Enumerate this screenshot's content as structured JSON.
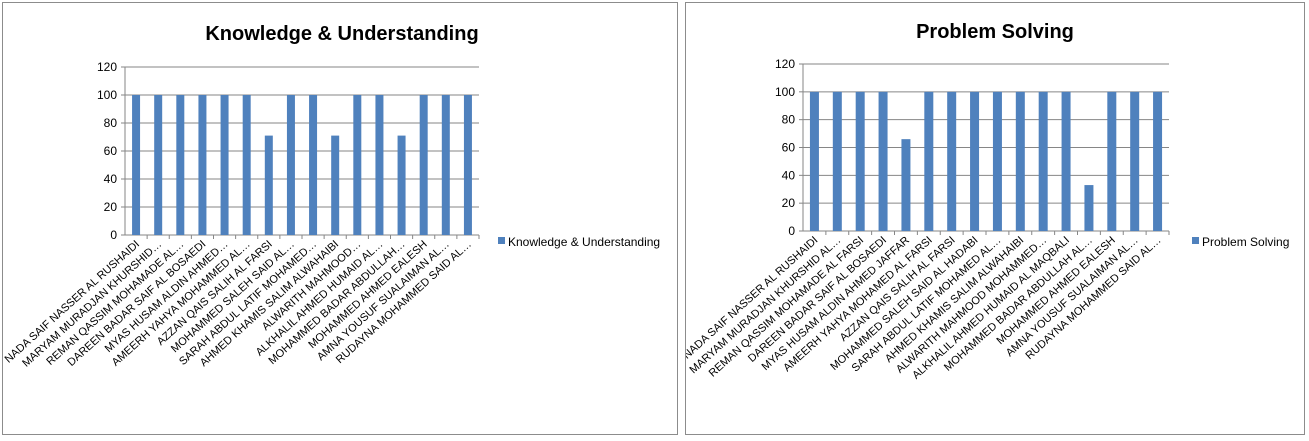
{
  "colors": {
    "bar": "#4f81bd",
    "grid": "#868686",
    "axis": "#868686"
  },
  "chart_data": [
    {
      "type": "bar",
      "title": "Knowledge & Understanding",
      "legend": "right",
      "grid": true,
      "ylim": [
        0,
        120
      ],
      "yticks": [
        "0",
        "20",
        "40",
        "60",
        "80",
        "100",
        "120"
      ],
      "categories": [
        "NADA SAIF NASSER AL RUSHAIDI",
        "MARYAM MURADJAN KHURSHID…",
        "REMAN QASSIM MOHAMADE AL…",
        "DAREEN BADAR SAIF AL BOSAEDI",
        "MYAS HUSAM ALDIN AHMED…",
        "AMEERH YAHYA MOHAMMED  AL…",
        "AZZAN QAIS SALIH AL FARSI",
        "MOHAMMED SALEH SAID AL…",
        "SARAH ABDUL LATIF MOHAMED…",
        "AHMED KHAMIS SALIM ALWAHAIBI",
        "ALWARITH MAHMOOD…",
        "ALKHALIL AHMED HUMAID AL…",
        "MOHAMMED BADAR ABDULLAH…",
        "MOHAMMED AHMED EALESH",
        "AMNA YOUSUF SUALAIMAN AL…",
        "RUDAYNA MOHAMMED SAID AL…"
      ],
      "series": [
        {
          "name": "Knowledge & Understanding",
          "values": [
            100,
            100,
            100,
            100,
            100,
            100,
            71,
            100,
            100,
            71,
            100,
            100,
            71,
            100,
            100,
            100
          ]
        }
      ]
    },
    {
      "type": "bar",
      "title": "Problem Solving",
      "legend": "right",
      "grid": true,
      "ylim": [
        0,
        120
      ],
      "yticks": [
        "0",
        "20",
        "40",
        "60",
        "80",
        "100",
        "120"
      ],
      "categories": [
        "NADA SAIF NASSER AL RUSHAIDI",
        "MARYAM MURADJAN KHURSHID AL…",
        "REMAN QASSIM MOHAMADE AL FARSI",
        "DAREEN BADAR SAIF AL BOSAEDI",
        "MYAS HUSAM ALDIN AHMED JAFFAR",
        "AMEERH YAHYA MOHAMED  AL FARSI",
        "AZZAN QAIS SALIH AL FARSI",
        "MOHAMMED SALEH SAID AL HADABI",
        "SARAH ABDUL LATIF MOHAMED AL…",
        "AHMED KHAMIS SALIM ALWAHAIBI",
        "ALWARITH MAHMOOD MOHAMMED…",
        "ALKHALIL AHMED HUMAID AL MAQBALI",
        "MOHAMMED BADAR ABDULLAH AL…",
        "MOHAMMED AHMED EALESH",
        "AMNA YOUSUF SUALAIMAN AL…",
        "RUDAYNA MOHAMMED SAID AL…"
      ],
      "series": [
        {
          "name": "Problem Solving",
          "values": [
            100,
            100,
            100,
            100,
            66,
            100,
            100,
            100,
            100,
            100,
            100,
            100,
            33,
            100,
            100,
            100
          ]
        }
      ]
    }
  ]
}
